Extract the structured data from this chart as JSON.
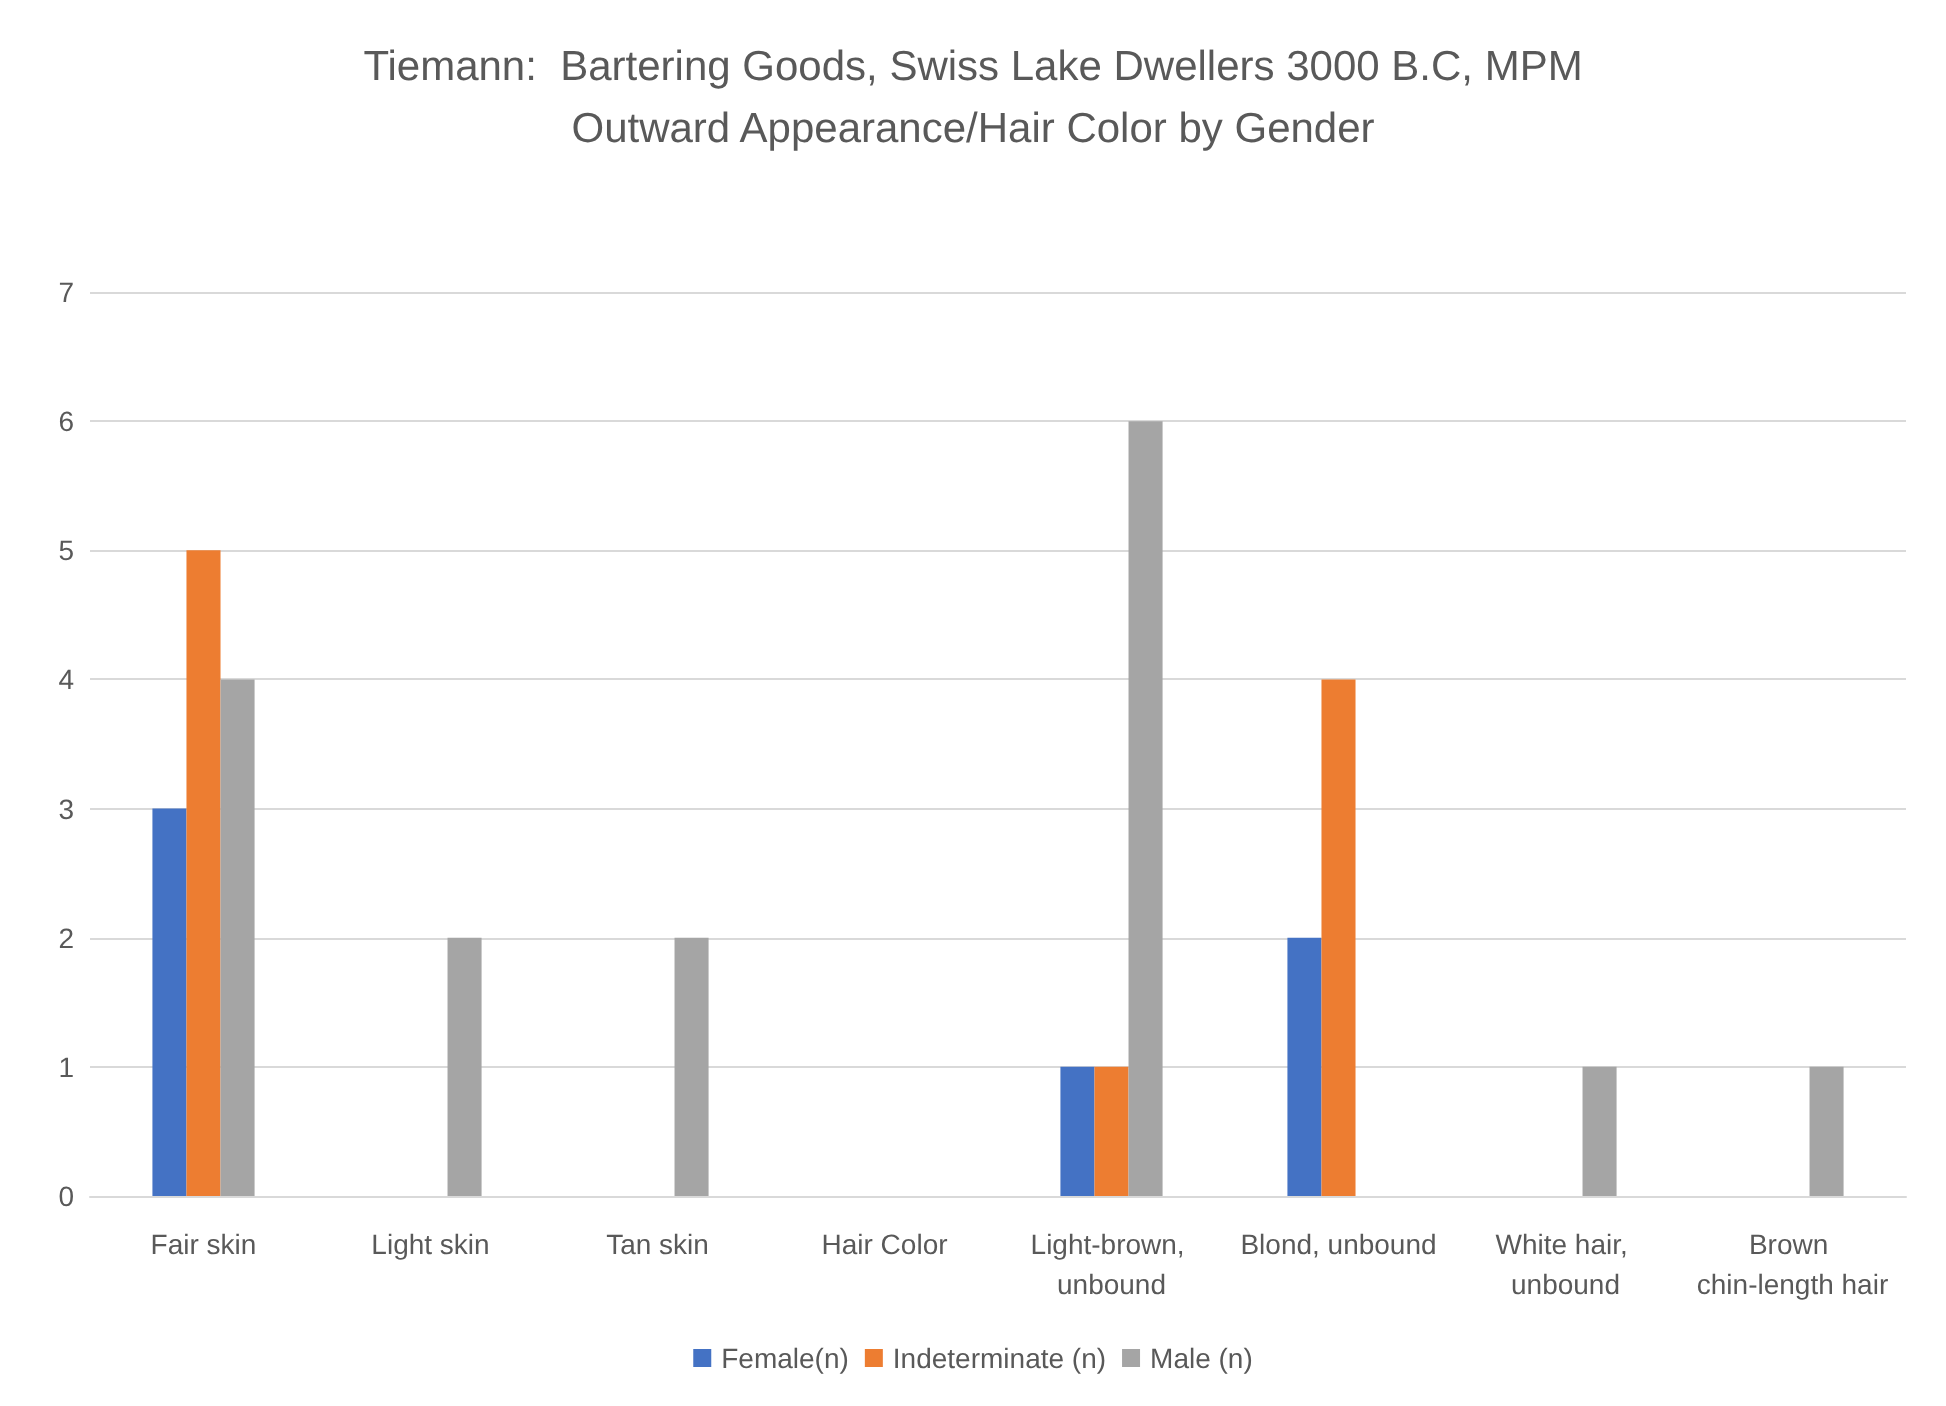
{
  "chart_data": {
    "type": "bar",
    "title": "Tiemann:  Bartering Goods, Swiss Lake Dwellers 3000 B.C, MPM",
    "subtitle": "Outward Appearance/Hair Color by Gender",
    "categories": [
      "Fair skin",
      "Light skin",
      "Tan skin",
      "Hair Color",
      "Light-brown, unbound",
      "Blond, unbound",
      "White hair, unbound",
      "Brown chin-length hair"
    ],
    "series": [
      {
        "name": "Female(n)",
        "color": "#4472c4",
        "values": [
          3,
          null,
          null,
          null,
          1,
          2,
          null,
          null
        ]
      },
      {
        "name": "Indeterminate (n)",
        "color": "#ed7d31",
        "values": [
          5,
          null,
          null,
          null,
          1,
          4,
          null,
          null
        ]
      },
      {
        "name": "Male (n)",
        "color": "#a5a5a5",
        "values": [
          4,
          2,
          2,
          null,
          6,
          null,
          1,
          1
        ]
      }
    ],
    "ylim": [
      0,
      7
    ],
    "yticks": [
      0,
      1,
      2,
      3,
      4,
      5,
      6,
      7
    ],
    "grid": "y",
    "legend": "bottom"
  }
}
